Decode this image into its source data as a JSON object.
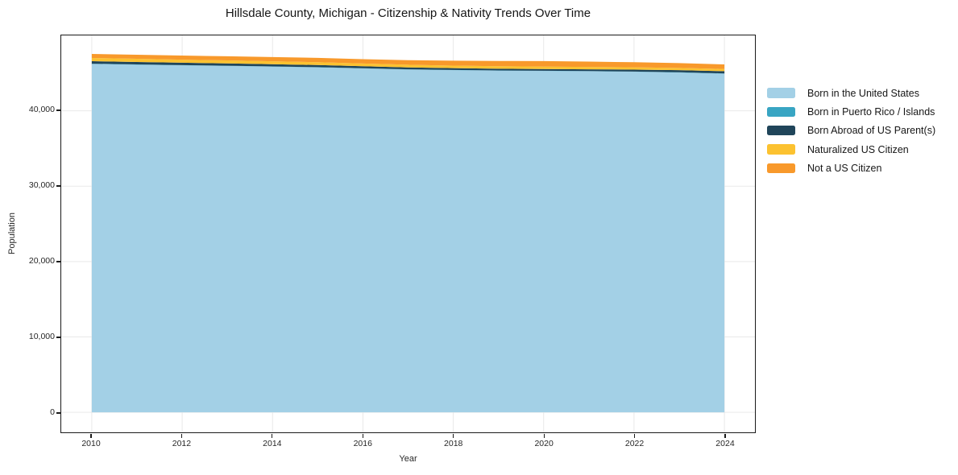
{
  "title": "Hillsdale County, Michigan - Citizenship & Nativity Trends Over Time",
  "chart_data": {
    "type": "area",
    "stacked": true,
    "title": "Hillsdale County, Michigan - Citizenship & Nativity Trends Over Time",
    "xlabel": "Year",
    "ylabel": "Population",
    "x": [
      2010,
      2011,
      2012,
      2013,
      2014,
      2015,
      2016,
      2017,
      2018,
      2019,
      2020,
      2021,
      2022,
      2023,
      2024
    ],
    "series": [
      {
        "name": "Born in the United States",
        "color": "#a3d0e6",
        "values": [
          46210,
          46120,
          46030,
          45950,
          45860,
          45760,
          45620,
          45480,
          45390,
          45330,
          45290,
          45240,
          45180,
          45080,
          44920
        ]
      },
      {
        "name": "Born in Puerto Rico / Islands",
        "color": "#38a5c3",
        "values": [
          40,
          40,
          35,
          35,
          30,
          30,
          30,
          25,
          25,
          25,
          25,
          30,
          30,
          35,
          40
        ]
      },
      {
        "name": "Born Abroad of US Parent(s)",
        "color": "#20455a",
        "values": [
          330,
          320,
          310,
          300,
          290,
          280,
          260,
          250,
          240,
          230,
          220,
          235,
          255,
          275,
          295
        ]
      },
      {
        "name": "Naturalized US Citizen",
        "color": "#fcc230",
        "values": [
          430,
          420,
          410,
          400,
          390,
          380,
          365,
          355,
          345,
          335,
          325,
          315,
          305,
          300,
          295
        ]
      },
      {
        "name": "Not a US Citizen",
        "color": "#f8992b",
        "values": [
          530,
          540,
          545,
          550,
          560,
          570,
          580,
          610,
          650,
          690,
          730,
          705,
          675,
          640,
          600
        ]
      }
    ],
    "x_ticks": [
      2010,
      2012,
      2014,
      2016,
      2018,
      2020,
      2022,
      2024
    ],
    "x_tick_labels": [
      "2010",
      "2012",
      "2014",
      "2016",
      "2018",
      "2020",
      "2022",
      "2024"
    ],
    "y_ticks": [
      0,
      10000,
      20000,
      30000,
      40000
    ],
    "y_tick_labels": [
      "0",
      "10,000",
      "20,000",
      "30,000",
      "40,000"
    ],
    "xlim": [
      2009.324,
      2024.676
    ],
    "ylim": [
      -2660,
      50000
    ],
    "grid": true,
    "grid_color": "#e9e9e9",
    "legend_position": "right-outside"
  }
}
